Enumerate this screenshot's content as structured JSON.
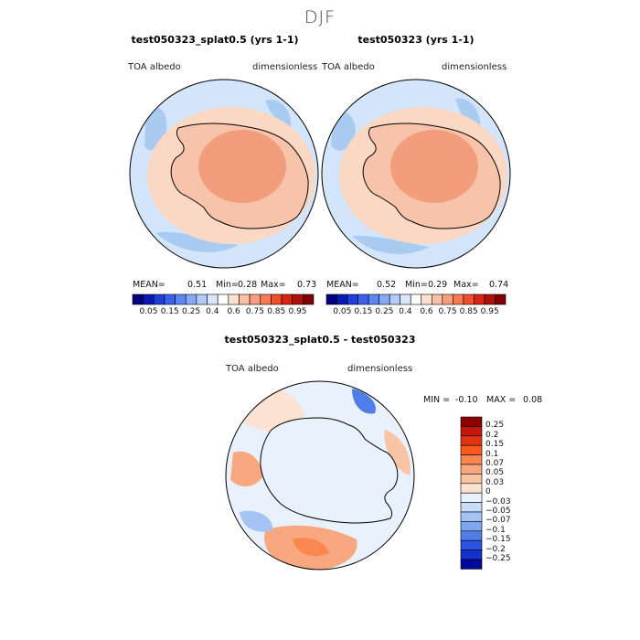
{
  "season": "DJF",
  "colors": {
    "ocean": "#d2e5fa",
    "ocean_blue": "#a9cbf1",
    "land_light": "#fbd8c4",
    "land_mid": "#f7b394",
    "land_dark": "#f29e7c",
    "diff_pos": "#f6b4a0",
    "diff_neg": "#5a8ee8"
  },
  "panels": [
    {
      "title": "test050323_splat0.5 (yrs 1-1)",
      "left_label": "TOA albedo",
      "right_label": "dimensionless",
      "mean_label": "MEAN=",
      "mean": "0.51",
      "min_label": "Min=",
      "min": "0.28",
      "max_label": "Max=",
      "max": "0.73"
    },
    {
      "title": "test050323 (yrs 1-1)",
      "left_label": "TOA albedo",
      "right_label": "dimensionless",
      "mean_label": "MEAN=",
      "mean": "0.52",
      "min_label": "Min=",
      "min": "0.29",
      "max_label": "Max=",
      "max": "0.74"
    }
  ],
  "colorbar_top": {
    "labels": [
      "0.05",
      "0.15",
      "0.25",
      "0.4",
      "0.6",
      "0.75",
      "0.85",
      "0.95"
    ],
    "colors": [
      "#00007f",
      "#0a1ab8",
      "#1e3fd9",
      "#3a62ec",
      "#5c86f2",
      "#86a9f5",
      "#b2cbf8",
      "#dae7fb",
      "#ffffff",
      "#fde0cf",
      "#fbc0a4",
      "#f89e7c",
      "#f57a55",
      "#f04d2c",
      "#d82410",
      "#b0100b",
      "#7f0000"
    ]
  },
  "diff": {
    "title": "test050323_splat0.5 - test050323",
    "left_label": "TOA albedo",
    "right_label": "dimensionless",
    "min_label": "MIN =",
    "min": "-0.10",
    "max_label": "MAX =",
    "max": "0.08"
  },
  "colorbar_diff": {
    "labels": [
      "0.25",
      "0.2",
      "0.15",
      "0.1",
      "0.07",
      "0.05",
      "0.03",
      "0",
      "−0.03",
      "−0.05",
      "−0.07",
      "−0.1",
      "−0.15",
      "−0.2",
      "−0.25"
    ],
    "colors": [
      "#8b0000",
      "#c4170c",
      "#e13512",
      "#f85a1e",
      "#fa8650",
      "#f8a77f",
      "#f9c4a6",
      "#fbe2d2",
      "#e8f1fc",
      "#c7dcf7",
      "#a4c4f3",
      "#7ea6ef",
      "#4f7ee9",
      "#2a55e2",
      "#1431cc",
      "#05099a"
    ]
  }
}
